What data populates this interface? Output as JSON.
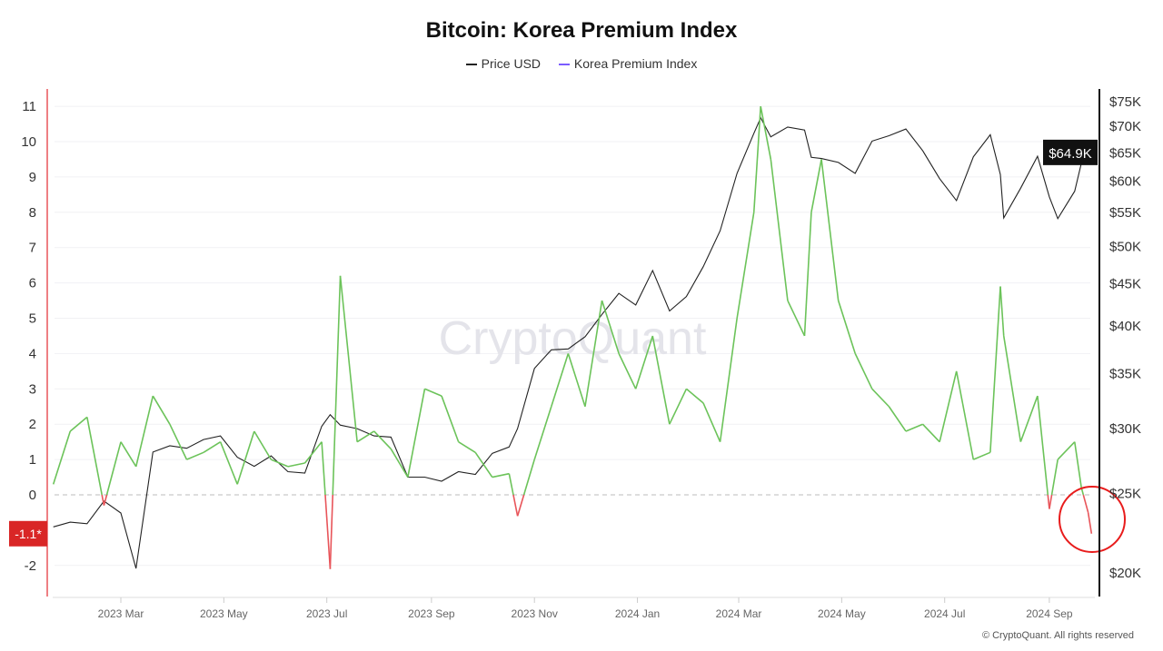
{
  "title": "Bitcoin: Korea Premium Index",
  "legend": [
    {
      "label": "Price USD",
      "color": "#222222"
    },
    {
      "label": "Korea Premium Index",
      "color": "#7b5cff"
    }
  ],
  "watermark": "CryptoQuant",
  "copyright": "© CryptoQuant. All rights reserved",
  "chart_data": {
    "type": "line",
    "title": "Bitcoin: Korea Premium Index",
    "x_ticks": [
      {
        "label": "2023 Mar",
        "date": "2023-03-01"
      },
      {
        "label": "2023 May",
        "date": "2023-05-01"
      },
      {
        "label": "2023 Jul",
        "date": "2023-07-01"
      },
      {
        "label": "2023 Sep",
        "date": "2023-09-01"
      },
      {
        "label": "2023 Nov",
        "date": "2023-11-01"
      },
      {
        "label": "2024 Jan",
        "date": "2024-01-01"
      },
      {
        "label": "2024 Mar",
        "date": "2024-03-01"
      },
      {
        "label": "2024 May",
        "date": "2024-05-01"
      },
      {
        "label": "2024 Jul",
        "date": "2024-07-01"
      },
      {
        "label": "2024 Sep",
        "date": "2024-09-01"
      }
    ],
    "left_axis": {
      "ticks": [
        "-2",
        "0",
        "1",
        "2",
        "3",
        "4",
        "5",
        "6",
        "7",
        "8",
        "9",
        "10",
        "11"
      ],
      "range": [
        -2.8,
        11.4
      ],
      "current_value_label": "-1.1*",
      "current_value_color": "#d92626"
    },
    "right_axis": {
      "scale": "log",
      "ticks": [
        "$20K",
        "$25K",
        "$30K",
        "$35K",
        "$40K",
        "$45K",
        "$50K",
        "$55K",
        "$60K",
        "$65K",
        "$70K",
        "$75K"
      ],
      "tick_values": [
        20000,
        25000,
        30000,
        35000,
        40000,
        45000,
        50000,
        55000,
        60000,
        65000,
        70000,
        75000
      ],
      "current_value_label": "$64.9K",
      "current_value_color": "#111111"
    },
    "grid": true,
    "zero_line": "dashed",
    "positive_color": "#6cc35a",
    "negative_color": "#e8555a",
    "price_color": "#222222",
    "highlight_circle_color": "#e81c1c",
    "series": [
      {
        "name": "Price USD",
        "axis": "right",
        "points": [
          [
            "2023-01-20",
            22700
          ],
          [
            "2023-01-30",
            23000
          ],
          [
            "2023-02-09",
            22900
          ],
          [
            "2023-02-19",
            24400
          ],
          [
            "2023-03-01",
            23600
          ],
          [
            "2023-03-10",
            20200
          ],
          [
            "2023-03-20",
            28000
          ],
          [
            "2023-03-30",
            28500
          ],
          [
            "2023-04-09",
            28300
          ],
          [
            "2023-04-19",
            29000
          ],
          [
            "2023-04-29",
            29300
          ],
          [
            "2023-05-09",
            27600
          ],
          [
            "2023-05-19",
            26900
          ],
          [
            "2023-05-29",
            27700
          ],
          [
            "2023-06-08",
            26500
          ],
          [
            "2023-06-18",
            26400
          ],
          [
            "2023-06-28",
            30100
          ],
          [
            "2023-07-03",
            31100
          ],
          [
            "2023-07-09",
            30200
          ],
          [
            "2023-07-19",
            29900
          ],
          [
            "2023-07-29",
            29300
          ],
          [
            "2023-08-08",
            29200
          ],
          [
            "2023-08-18",
            26100
          ],
          [
            "2023-08-28",
            26100
          ],
          [
            "2023-09-07",
            25800
          ],
          [
            "2023-09-17",
            26500
          ],
          [
            "2023-09-27",
            26300
          ],
          [
            "2023-10-07",
            27900
          ],
          [
            "2023-10-17",
            28400
          ],
          [
            "2023-10-22",
            29900
          ],
          [
            "2023-11-01",
            35400
          ],
          [
            "2023-11-11",
            37300
          ],
          [
            "2023-11-21",
            37400
          ],
          [
            "2023-12-01",
            38700
          ],
          [
            "2023-12-11",
            41200
          ],
          [
            "2023-12-21",
            43700
          ],
          [
            "2023-12-31",
            42300
          ],
          [
            "2024-01-10",
            46600
          ],
          [
            "2024-01-20",
            41600
          ],
          [
            "2024-01-30",
            43300
          ],
          [
            "2024-02-09",
            47100
          ],
          [
            "2024-02-19",
            52100
          ],
          [
            "2024-02-29",
            61200
          ],
          [
            "2024-03-10",
            68500
          ],
          [
            "2024-03-14",
            71500
          ],
          [
            "2024-03-20",
            67800
          ],
          [
            "2024-03-30",
            69700
          ],
          [
            "2024-04-09",
            69100
          ],
          [
            "2024-04-13",
            64000
          ],
          [
            "2024-04-19",
            63800
          ],
          [
            "2024-04-29",
            63100
          ],
          [
            "2024-05-09",
            61200
          ],
          [
            "2024-05-19",
            67000
          ],
          [
            "2024-05-29",
            68000
          ],
          [
            "2024-06-08",
            69300
          ],
          [
            "2024-06-18",
            65200
          ],
          [
            "2024-06-28",
            60300
          ],
          [
            "2024-07-08",
            56700
          ],
          [
            "2024-07-18",
            64100
          ],
          [
            "2024-07-28",
            68200
          ],
          [
            "2024-08-03",
            61000
          ],
          [
            "2024-08-05",
            54000
          ],
          [
            "2024-08-15",
            58700
          ],
          [
            "2024-08-25",
            64200
          ],
          [
            "2024-09-01",
            57300
          ],
          [
            "2024-09-06",
            53900
          ],
          [
            "2024-09-16",
            58200
          ],
          [
            "2024-09-20",
            63000
          ],
          [
            "2024-09-24",
            64300
          ],
          [
            "2024-09-26",
            64900
          ]
        ]
      },
      {
        "name": "Korea Premium Index",
        "axis": "left",
        "points": [
          [
            "2023-01-20",
            0.3
          ],
          [
            "2023-01-30",
            1.8
          ],
          [
            "2023-02-09",
            2.2
          ],
          [
            "2023-02-19",
            -0.3
          ],
          [
            "2023-03-01",
            1.5
          ],
          [
            "2023-03-10",
            0.8
          ],
          [
            "2023-03-20",
            2.8
          ],
          [
            "2023-03-30",
            2.0
          ],
          [
            "2023-04-09",
            1.0
          ],
          [
            "2023-04-19",
            1.2
          ],
          [
            "2023-04-29",
            1.5
          ],
          [
            "2023-05-09",
            0.3
          ],
          [
            "2023-05-19",
            1.8
          ],
          [
            "2023-05-29",
            1.0
          ],
          [
            "2023-06-08",
            0.8
          ],
          [
            "2023-06-18",
            0.9
          ],
          [
            "2023-06-28",
            1.5
          ],
          [
            "2023-07-03",
            -2.1
          ],
          [
            "2023-07-09",
            6.2
          ],
          [
            "2023-07-19",
            1.5
          ],
          [
            "2023-07-29",
            1.8
          ],
          [
            "2023-08-08",
            1.3
          ],
          [
            "2023-08-18",
            0.5
          ],
          [
            "2023-08-28",
            3.0
          ],
          [
            "2023-09-07",
            2.8
          ],
          [
            "2023-09-17",
            1.5
          ],
          [
            "2023-09-27",
            1.2
          ],
          [
            "2023-10-07",
            0.5
          ],
          [
            "2023-10-17",
            0.6
          ],
          [
            "2023-10-22",
            -0.6
          ],
          [
            "2023-11-01",
            1.0
          ],
          [
            "2023-11-11",
            2.5
          ],
          [
            "2023-11-21",
            4.0
          ],
          [
            "2023-12-01",
            2.5
          ],
          [
            "2023-12-11",
            5.5
          ],
          [
            "2023-12-21",
            4.0
          ],
          [
            "2023-12-31",
            3.0
          ],
          [
            "2024-01-10",
            4.5
          ],
          [
            "2024-01-20",
            2.0
          ],
          [
            "2024-01-30",
            3.0
          ],
          [
            "2024-02-09",
            2.6
          ],
          [
            "2024-02-19",
            1.5
          ],
          [
            "2024-02-29",
            5.0
          ],
          [
            "2024-03-10",
            8.0
          ],
          [
            "2024-03-14",
            11.0
          ],
          [
            "2024-03-20",
            9.5
          ],
          [
            "2024-03-30",
            5.5
          ],
          [
            "2024-04-09",
            4.5
          ],
          [
            "2024-04-13",
            8.0
          ],
          [
            "2024-04-19",
            9.5
          ],
          [
            "2024-04-29",
            5.5
          ],
          [
            "2024-05-09",
            4.0
          ],
          [
            "2024-05-19",
            3.0
          ],
          [
            "2024-05-29",
            2.5
          ],
          [
            "2024-06-08",
            1.8
          ],
          [
            "2024-06-18",
            2.0
          ],
          [
            "2024-06-28",
            1.5
          ],
          [
            "2024-07-08",
            3.5
          ],
          [
            "2024-07-18",
            1.0
          ],
          [
            "2024-07-28",
            1.2
          ],
          [
            "2024-08-03",
            5.9
          ],
          [
            "2024-08-05",
            4.5
          ],
          [
            "2024-08-15",
            1.5
          ],
          [
            "2024-08-25",
            2.8
          ],
          [
            "2024-09-01",
            -0.4
          ],
          [
            "2024-09-06",
            1.0
          ],
          [
            "2024-09-16",
            1.5
          ],
          [
            "2024-09-20",
            0.2
          ],
          [
            "2024-09-24",
            -0.5
          ],
          [
            "2024-09-26",
            -1.1
          ]
        ]
      }
    ]
  }
}
